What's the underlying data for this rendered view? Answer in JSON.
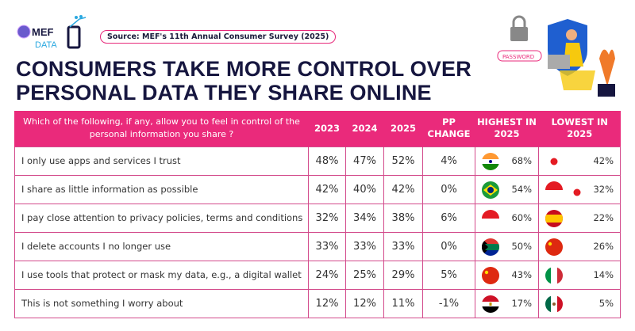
{
  "logo": {
    "text_top": "MEF",
    "text_bottom": "DATA"
  },
  "source": "Source: MEF's 11th Annual Consumer Survey (2025)",
  "title_line1": "CONSUMERS TAKE MORE CONTROL OVER",
  "title_line2": "PERSONAL DATA THEY SHARE ONLINE",
  "illustration_text": "PASSWORD",
  "colors": {
    "accent": "#ea2a7b",
    "title": "#16163f"
  },
  "table": {
    "headers": {
      "question": "Which of the following, if any, allow you to feel in control of the personal information you share ?",
      "y2023": "2023",
      "y2024": "2024",
      "y2025": "2025",
      "pp": "PP CHANGE",
      "highest": "HIGHEST IN 2025",
      "lowest": "LOWEST IN 2025"
    },
    "rows": [
      {
        "label": "I only use apps and services I trust",
        "y2023": "48%",
        "y2024": "47%",
        "y2025": "52%",
        "pp": "4%",
        "highest_flag": "india",
        "highest": "68%",
        "lowest_flag": "japan",
        "lowest": "42%"
      },
      {
        "label": "I share as little information as possible",
        "y2023": "42%",
        "y2024": "40%",
        "y2025": "42%",
        "pp": "0%",
        "highest_flag": "brazil",
        "highest": "54%",
        "lowest_flag": "indonesia+japan",
        "lowest": "32%"
      },
      {
        "label": "I pay close attention to privacy policies, terms and conditions",
        "y2023": "32%",
        "y2024": "34%",
        "y2025": "38%",
        "pp": "6%",
        "highest_flag": "indonesia",
        "highest": "60%",
        "lowest_flag": "spain",
        "lowest": "22%"
      },
      {
        "label": "I delete accounts I no longer use",
        "y2023": "33%",
        "y2024": "33%",
        "y2025": "33%",
        "pp": "0%",
        "highest_flag": "south-africa",
        "highest": "50%",
        "lowest_flag": "china",
        "lowest": "26%"
      },
      {
        "label": "I use tools that protect or mask my data, e.g., a digital wallet",
        "y2023": "24%",
        "y2024": "25%",
        "y2025": "29%",
        "pp": "5%",
        "highest_flag": "china",
        "highest": "43%",
        "lowest_flag": "italy",
        "lowest": "14%"
      },
      {
        "label": "This is not something I worry about",
        "y2023": "12%",
        "y2024": "12%",
        "y2025": "11%",
        "pp": "-1%",
        "highest_flag": "egypt",
        "highest": "17%",
        "lowest_flag": "mexico",
        "lowest": "5%"
      }
    ]
  }
}
